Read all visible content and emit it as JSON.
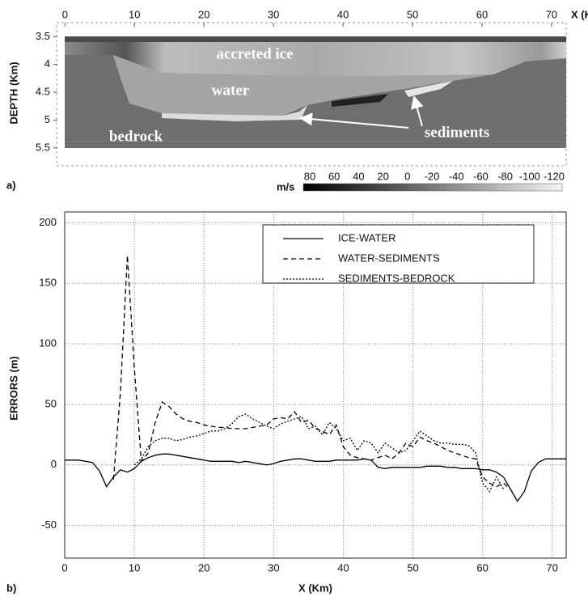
{
  "chart_data": [
    {
      "type": "section",
      "panel_label": "a)",
      "xlabel": "X (Km)",
      "ylabel": "DEPTH (Km)",
      "xlim": [
        -1.2,
        72.1
      ],
      "xticks": [
        0,
        10,
        20,
        30,
        40,
        50,
        60,
        70
      ],
      "ylim": [
        3.35,
        5.75
      ],
      "yticks": [
        3.5,
        4,
        4.5,
        5,
        5.5
      ],
      "annotations": [
        "accreted ice",
        "water",
        "bedrock",
        "sediments"
      ],
      "colorbar": {
        "label": "m/s",
        "ticks": [
          80,
          60,
          40,
          20,
          0,
          -20,
          -40,
          -60,
          -80,
          -100,
          -120
        ]
      }
    },
    {
      "type": "line",
      "panel_label": "b)",
      "xlabel": "X (Km)",
      "ylabel": "ERRORS (m)",
      "xlim": [
        0,
        72
      ],
      "xticks": [
        0,
        10,
        20,
        30,
        40,
        50,
        60,
        70
      ],
      "ylim": [
        -77,
        209
      ],
      "yticks": [
        -50,
        0,
        50,
        100,
        150,
        200
      ],
      "grid": true,
      "legend": "upper right",
      "x": [
        0,
        1,
        2,
        3,
        4,
        5,
        6,
        7,
        8,
        9,
        10,
        11,
        12,
        13,
        14,
        15,
        16,
        17,
        18,
        19,
        20,
        21,
        22,
        23,
        24,
        25,
        26,
        27,
        28,
        29,
        30,
        31,
        32,
        33,
        34,
        35,
        36,
        37,
        38,
        39,
        40,
        41,
        42,
        43,
        44,
        45,
        46,
        47,
        48,
        49,
        50,
        51,
        52,
        53,
        54,
        55,
        56,
        57,
        58,
        59,
        60,
        61,
        62,
        63,
        64,
        65,
        66,
        67,
        68,
        69,
        70,
        71,
        72
      ],
      "series": [
        {
          "name": "ICE-WATER",
          "color": "#000000",
          "dash": "solid",
          "values": [
            4,
            4,
            4,
            3,
            2,
            -5,
            -18,
            -10,
            -4,
            -6,
            -3,
            3,
            6,
            8,
            9,
            9,
            8,
            7,
            6,
            5,
            4,
            3,
            3,
            3,
            3,
            2,
            3,
            2,
            1,
            0,
            1,
            3,
            4,
            5,
            5,
            4,
            3,
            3,
            3,
            4,
            4,
            4,
            4,
            5,
            4,
            -2,
            -3,
            -2,
            -2,
            -2,
            -2,
            -2,
            -1,
            -1,
            -1,
            -2,
            -2,
            -3,
            -3,
            -3,
            -4,
            -4,
            -6,
            -10,
            -20,
            -30,
            -22,
            -5,
            2,
            5,
            5,
            5,
            5
          ]
        },
        {
          "name": "WATER-SEDIMENTS",
          "color": "#000000",
          "dash": "dashed",
          "values": [
            null,
            null,
            null,
            null,
            null,
            null,
            null,
            -12,
            60,
            173,
            80,
            3,
            10,
            35,
            52,
            48,
            42,
            38,
            36,
            35,
            33,
            32,
            31,
            31,
            30,
            30,
            30,
            31,
            32,
            33,
            38,
            39,
            38,
            44,
            35,
            37,
            30,
            28,
            25,
            33,
            15,
            8,
            6,
            5,
            4,
            6,
            8,
            5,
            10,
            18,
            15,
            23,
            20,
            18,
            15,
            12,
            10,
            8,
            6,
            5,
            -10,
            -15,
            -18,
            -15,
            -20,
            -30,
            null,
            null,
            null,
            null,
            null,
            null,
            null
          ]
        },
        {
          "name": "SEDIMENTS-BEDROCK",
          "color": "#000000",
          "dash": "dotted",
          "values": [
            null,
            null,
            null,
            null,
            null,
            null,
            null,
            null,
            null,
            null,
            0,
            5,
            15,
            20,
            22,
            22,
            20,
            21,
            23,
            24,
            26,
            28,
            28,
            30,
            34,
            40,
            42,
            38,
            35,
            32,
            30,
            34,
            36,
            38,
            40,
            30,
            32,
            25,
            35,
            30,
            20,
            22,
            12,
            20,
            18,
            10,
            18,
            14,
            10,
            12,
            20,
            28,
            24,
            20,
            18,
            18,
            17,
            17,
            16,
            10,
            -15,
            -22,
            -10,
            -20,
            null,
            null,
            null,
            null,
            null,
            null,
            null,
            null,
            null
          ]
        }
      ]
    }
  ]
}
